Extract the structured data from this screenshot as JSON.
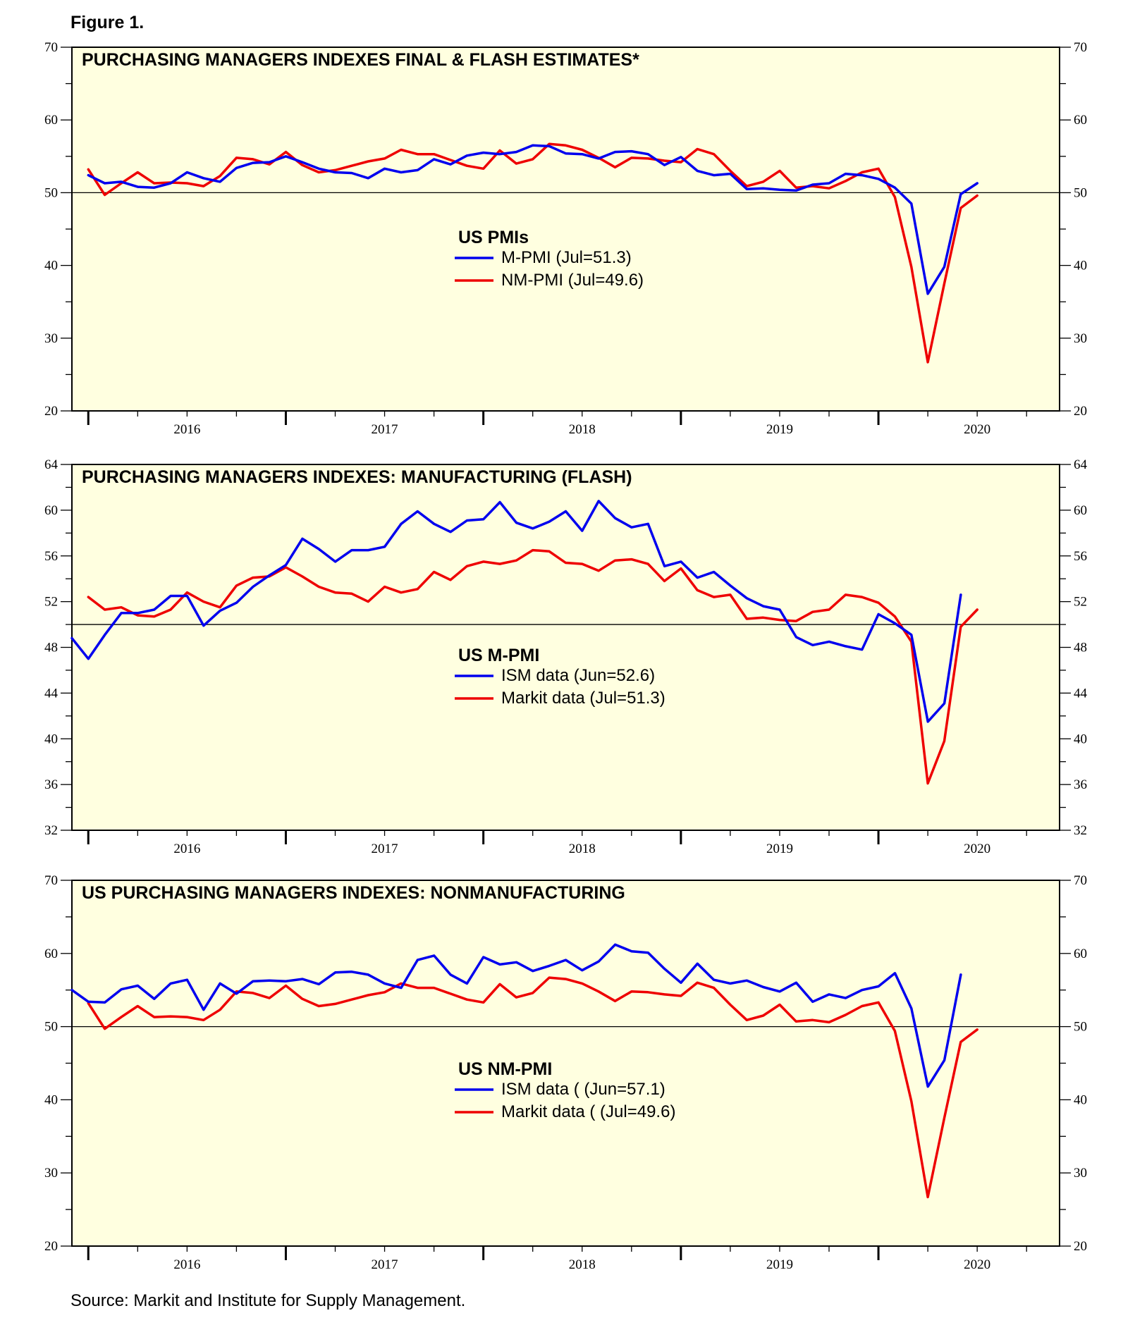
{
  "figure_label": "Figure 1.",
  "source": "Source: Markit and Institute for Supply Management.",
  "colors": {
    "blue": "#0000ee",
    "red": "#ee0000",
    "plot_bg": "#ffffe0"
  },
  "chart_data": [
    {
      "type": "line",
      "title": "PURCHASING MANAGERS INDEXES FINAL & FLASH ESTIMATES*",
      "ylim": [
        20,
        70
      ],
      "yticks": [
        "20",
        "30",
        "40",
        "50",
        "60",
        "70"
      ],
      "minor_step": 5,
      "reference_line": 50,
      "x_start": 2015.917,
      "x_end": 2020.917,
      "years": [
        "2016",
        "2017",
        "2018",
        "2019",
        "2020"
      ],
      "legend_title": "US PMIs",
      "series": [
        {
          "name": "M-PMI (Jul=51.3)",
          "color": "#0000ee",
          "start": 2016.0,
          "values": [
            52.4,
            51.3,
            51.5,
            50.8,
            50.7,
            51.3,
            52.8,
            52.0,
            51.5,
            53.4,
            54.1,
            54.2,
            55.0,
            54.2,
            53.3,
            52.8,
            52.7,
            52.0,
            53.3,
            52.8,
            53.1,
            54.6,
            53.9,
            55.1,
            55.5,
            55.3,
            55.6,
            56.5,
            56.4,
            55.4,
            55.3,
            54.7,
            55.6,
            55.7,
            55.3,
            53.8,
            54.9,
            53.0,
            52.4,
            52.6,
            50.5,
            50.6,
            50.4,
            50.3,
            51.1,
            51.3,
            52.6,
            52.4,
            51.9,
            50.7,
            48.5,
            36.1,
            39.8,
            49.8,
            51.3
          ]
        },
        {
          "name": "NM-PMI (Jul=49.6)",
          "color": "#ee0000",
          "start": 2016.0,
          "values": [
            53.2,
            49.7,
            51.3,
            52.8,
            51.3,
            51.4,
            51.3,
            50.9,
            52.3,
            54.8,
            54.6,
            53.9,
            55.6,
            53.8,
            52.8,
            53.1,
            53.7,
            54.3,
            54.7,
            55.9,
            55.3,
            55.3,
            54.5,
            53.7,
            53.3,
            55.8,
            54.0,
            54.6,
            56.7,
            56.5,
            55.9,
            54.8,
            53.5,
            54.8,
            54.7,
            54.4,
            54.2,
            56.0,
            55.3,
            53.0,
            50.9,
            51.5,
            53.0,
            50.7,
            50.9,
            50.6,
            51.6,
            52.8,
            53.3,
            49.4,
            39.8,
            26.7,
            37.5,
            47.9,
            49.6
          ]
        }
      ]
    },
    {
      "type": "line",
      "title": "PURCHASING MANAGERS INDEXES: MANUFACTURING (FLASH)",
      "ylim": [
        32,
        64
      ],
      "yticks": [
        "32",
        "36",
        "40",
        "44",
        "48",
        "52",
        "56",
        "60",
        "64"
      ],
      "minor_step": 2,
      "reference_line": 50,
      "x_start": 2015.917,
      "x_end": 2020.917,
      "years": [
        "2016",
        "2017",
        "2018",
        "2019",
        "2020"
      ],
      "legend_title": "US M-PMI",
      "series": [
        {
          "name": "ISM data (Jun=52.6)",
          "color": "#0000ee",
          "start": 2015.917,
          "values": [
            48.8,
            47.0,
            49.1,
            51.0,
            51.0,
            51.3,
            52.5,
            52.5,
            49.9,
            51.2,
            51.9,
            53.3,
            54.3,
            55.2,
            57.5,
            56.6,
            55.5,
            56.5,
            56.5,
            56.8,
            58.8,
            59.9,
            58.8,
            58.1,
            59.1,
            59.2,
            60.7,
            58.9,
            58.4,
            59.0,
            59.9,
            58.2,
            60.8,
            59.3,
            58.5,
            58.8,
            55.1,
            55.5,
            54.1,
            54.6,
            53.4,
            52.3,
            51.6,
            51.3,
            48.9,
            48.2,
            48.5,
            48.1,
            47.8,
            50.9,
            50.1,
            49.1,
            41.5,
            43.1,
            52.6
          ]
        },
        {
          "name": "Markit data (Jul=51.3)",
          "color": "#ee0000",
          "start": 2016.0,
          "values": [
            52.4,
            51.3,
            51.5,
            50.8,
            50.7,
            51.3,
            52.8,
            52.0,
            51.5,
            53.4,
            54.1,
            54.2,
            55.0,
            54.2,
            53.3,
            52.8,
            52.7,
            52.0,
            53.3,
            52.8,
            53.1,
            54.6,
            53.9,
            55.1,
            55.5,
            55.3,
            55.6,
            56.5,
            56.4,
            55.4,
            55.3,
            54.7,
            55.6,
            55.7,
            55.3,
            53.8,
            54.9,
            53.0,
            52.4,
            52.6,
            50.5,
            50.6,
            50.4,
            50.3,
            51.1,
            51.3,
            52.6,
            52.4,
            51.9,
            50.7,
            48.5,
            36.1,
            39.8,
            49.8,
            51.3
          ]
        }
      ]
    },
    {
      "type": "line",
      "title": "US PURCHASING MANAGERS INDEXES: NONMANUFACTURING",
      "ylim": [
        20,
        70
      ],
      "yticks": [
        "20",
        "30",
        "40",
        "50",
        "60",
        "70"
      ],
      "minor_step": 5,
      "reference_line": 50,
      "x_start": 2015.917,
      "x_end": 2020.917,
      "years": [
        "2016",
        "2017",
        "2018",
        "2019",
        "2020"
      ],
      "legend_title": "US NM-PMI",
      "series": [
        {
          "name": "ISM data ( (Jun=57.1)",
          "color": "#0000ee",
          "start": 2015.917,
          "values": [
            55.0,
            53.4,
            53.3,
            55.1,
            55.6,
            53.8,
            55.9,
            56.4,
            52.3,
            55.9,
            54.5,
            56.2,
            56.3,
            56.2,
            56.5,
            55.8,
            57.4,
            57.5,
            57.1,
            55.9,
            55.3,
            59.1,
            59.7,
            57.1,
            55.9,
            59.5,
            58.5,
            58.8,
            57.6,
            58.3,
            59.1,
            57.7,
            58.9,
            61.2,
            60.3,
            60.1,
            57.9,
            56.0,
            58.6,
            56.4,
            55.9,
            56.3,
            55.4,
            54.8,
            56.0,
            53.4,
            54.4,
            53.9,
            55.0,
            55.5,
            57.3,
            52.5,
            41.8,
            45.4,
            57.1
          ]
        },
        {
          "name": "Markit data ( (Jul=49.6)",
          "color": "#ee0000",
          "start": 2016.0,
          "values": [
            53.2,
            49.7,
            51.3,
            52.8,
            51.3,
            51.4,
            51.3,
            50.9,
            52.3,
            54.8,
            54.6,
            53.9,
            55.6,
            53.8,
            52.8,
            53.1,
            53.7,
            54.3,
            54.7,
            55.9,
            55.3,
            55.3,
            54.5,
            53.7,
            53.3,
            55.8,
            54.0,
            54.6,
            56.7,
            56.5,
            55.9,
            54.8,
            53.5,
            54.8,
            54.7,
            54.4,
            54.2,
            56.0,
            55.3,
            53.0,
            50.9,
            51.5,
            53.0,
            50.7,
            50.9,
            50.6,
            51.6,
            52.8,
            53.3,
            49.4,
            39.8,
            26.7,
            37.5,
            47.9,
            49.6
          ]
        }
      ]
    }
  ]
}
